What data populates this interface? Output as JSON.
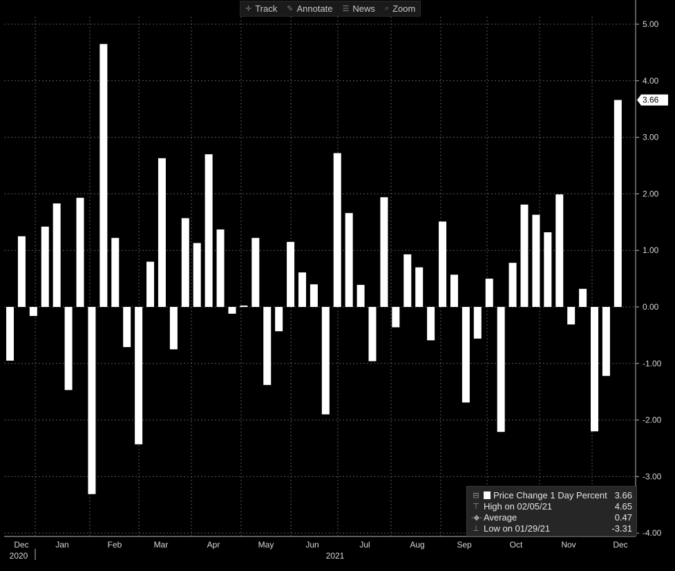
{
  "toolbar": [
    {
      "label": "Track",
      "icon": "crosshair-icon"
    },
    {
      "label": "Annotate",
      "icon": "pencil-icon"
    },
    {
      "label": "News",
      "icon": "news-icon"
    },
    {
      "label": "Zoom",
      "icon": "magnifier-icon"
    }
  ],
  "legend": {
    "series_label": "Price Change 1 Day Percent",
    "series_value": "3.66",
    "high_label": "High on 02/05/21",
    "high_value": "4.65",
    "avg_label": "Average",
    "avg_value": "0.47",
    "low_label": "Low on 01/29/21",
    "low_value": "-3.31"
  },
  "last_value_tag": "3.66",
  "chart_data": {
    "type": "bar",
    "title": "",
    "xlabel": "",
    "ylabel": "",
    "ylim": [
      -4.0,
      5.4
    ],
    "y_ticks": [
      "5.00",
      "4.00",
      "3.00",
      "2.00",
      "1.00",
      "0.00",
      "-1.00",
      "-2.00",
      "-3.00",
      "-4.00"
    ],
    "grid": true,
    "legend_position": "bottom-right",
    "colors": {
      "bars": "#ffffff",
      "background": "#000000",
      "grid": "#5a5a5a",
      "axis": "#bbbbbb"
    },
    "x_month_labels": [
      "Dec",
      "Jan",
      "Feb",
      "Mar",
      "Apr",
      "May",
      "Jun",
      "Jul",
      "Aug",
      "Sep",
      "Oct",
      "Nov",
      "Dec"
    ],
    "x_year_labels": [
      "2020",
      "2021"
    ],
    "series": [
      {
        "name": "Price Change 1 Day Percent",
        "values": [
          -0.95,
          1.25,
          -0.16,
          1.42,
          1.83,
          -1.47,
          1.93,
          -3.31,
          4.65,
          1.22,
          -0.71,
          -2.43,
          0.8,
          2.63,
          -0.75,
          1.57,
          1.13,
          2.7,
          1.37,
          -0.12,
          0.02,
          1.22,
          -1.38,
          -0.43,
          1.15,
          0.61,
          0.4,
          -1.9,
          2.72,
          1.66,
          0.39,
          -0.96,
          1.94,
          -0.36,
          0.93,
          0.7,
          -0.59,
          1.51,
          0.57,
          -1.69,
          -0.56,
          0.5,
          -2.21,
          0.78,
          1.81,
          1.63,
          1.32,
          1.99,
          -0.31,
          0.32,
          -2.2,
          -1.22,
          3.66
        ]
      }
    ]
  }
}
